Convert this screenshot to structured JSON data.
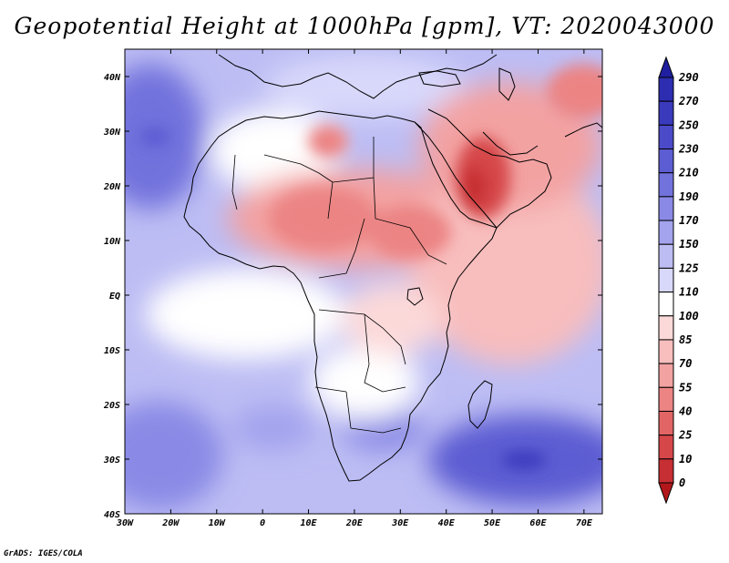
{
  "title": "Geopotential Height at 1000hPa [gpm], VT: 2020043000",
  "credit": "GrADS: IGES/COLA",
  "colors": {
    "scale": [
      "#b2181b",
      "#c62f33",
      "#d6474a",
      "#e26565",
      "#ec8484",
      "#f3a2a2",
      "#f8bdbd",
      "#fcd9d9",
      "#ffffff",
      "#d8d8fb",
      "#bdbdf4",
      "#a3a3ee",
      "#8a8ae6",
      "#7272dd",
      "#5d5dd3",
      "#4b4bc9",
      "#3a3abd",
      "#2d2db1",
      "#1f1fa0"
    ],
    "coast": "#000000"
  },
  "map": {
    "lon_labels": [
      "30W",
      "20W",
      "10W",
      "0",
      "10E",
      "20E",
      "30E",
      "40E",
      "50E",
      "60E",
      "70E"
    ],
    "lat_labels": [
      "40N",
      "30N",
      "20N",
      "10N",
      "EQ",
      "10S",
      "20S",
      "30S",
      "40S"
    ]
  },
  "colorbar": {
    "levels": [
      "290",
      "270",
      "250",
      "230",
      "210",
      "190",
      "170",
      "150",
      "125",
      "110",
      "100",
      "85",
      "70",
      "55",
      "40",
      "25",
      "10",
      "0"
    ]
  }
}
